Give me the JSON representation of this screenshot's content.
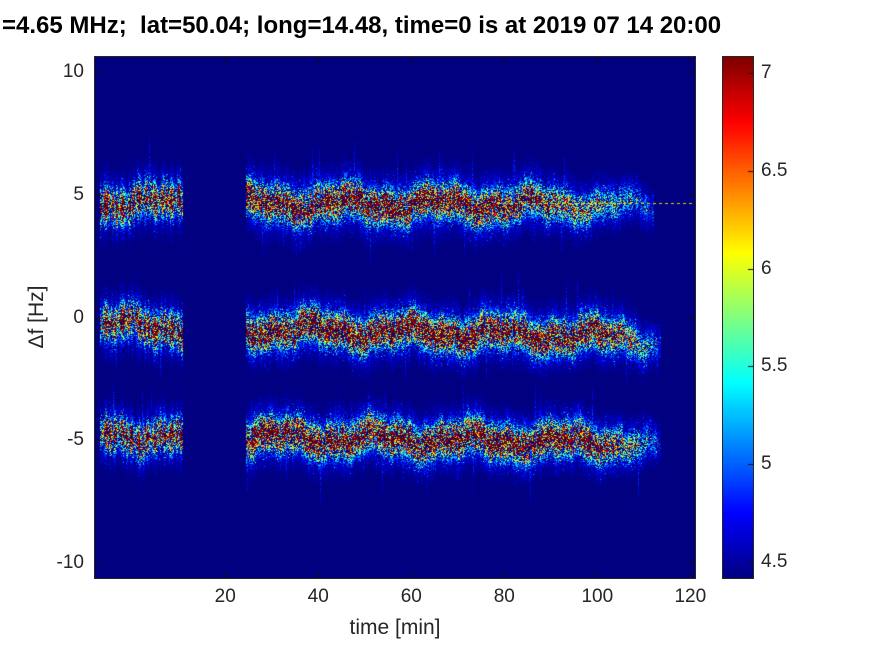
{
  "chart_data": {
    "type": "heatmap",
    "title": "=4.65 MHz;  lat=50.04; long=14.48, time=0 is at 2019 07 14 20:00",
    "xlabel": "time [min]",
    "ylabel": "Δf [Hz]",
    "xlim": [
      -8,
      121
    ],
    "ylim": [
      -10.6,
      10.6
    ],
    "xticks": [
      20,
      40,
      60,
      80,
      100,
      120
    ],
    "yticks": [
      10,
      5,
      0,
      -5,
      -10
    ],
    "grid": false,
    "colormap": "jet",
    "legend": "none",
    "colorbar": {
      "position": "right",
      "min": 4.42,
      "max": 7.08,
      "ticks": [
        7,
        6.5,
        6,
        5.5,
        5,
        4.5
      ]
    },
    "background_value": 4.42,
    "segments": [
      {
        "t0": -7,
        "t1": 11
      },
      {
        "t0": 24.5,
        "t1": 114
      }
    ],
    "bands": [
      {
        "name": "upper-doppler-trace",
        "center_hz": 4.68,
        "drift_hz": -0.08,
        "spread_hz": 1.0,
        "peak_value": 7.05,
        "fade_start": 78,
        "end_t": 112,
        "guide_line": {
          "t0": 78,
          "t1": 121,
          "value_hz": 4.65
        }
      },
      {
        "name": "middle-doppler-trace",
        "center_hz": -0.3,
        "drift_hz": -0.5,
        "spread_hz": 0.95,
        "peak_value": 7.05,
        "fade_start": 100,
        "end_t": 113.5
      },
      {
        "name": "lower-doppler-trace",
        "center_hz": -4.75,
        "drift_hz": -0.35,
        "spread_hz": 0.95,
        "peak_value": 7.05,
        "fade_start": 98,
        "end_t": 113.5
      }
    ]
  }
}
